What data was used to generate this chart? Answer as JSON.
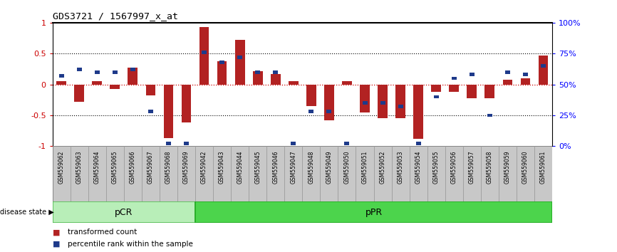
{
  "title": "GDS3721 / 1567997_x_at",
  "samples": [
    "GSM559062",
    "GSM559063",
    "GSM559064",
    "GSM559065",
    "GSM559066",
    "GSM559067",
    "GSM559068",
    "GSM559069",
    "GSM559042",
    "GSM559043",
    "GSM559044",
    "GSM559045",
    "GSM559046",
    "GSM559047",
    "GSM559048",
    "GSM559049",
    "GSM559050",
    "GSM559051",
    "GSM559052",
    "GSM559053",
    "GSM559054",
    "GSM559055",
    "GSM559056",
    "GSM559057",
    "GSM559058",
    "GSM559059",
    "GSM559060",
    "GSM559061"
  ],
  "transformed_count": [
    0.05,
    -0.28,
    0.05,
    -0.07,
    0.27,
    -0.18,
    -0.87,
    -0.62,
    0.93,
    0.37,
    0.72,
    0.22,
    0.17,
    0.05,
    -0.35,
    -0.58,
    0.05,
    -0.45,
    -0.55,
    -0.55,
    -0.88,
    -0.12,
    -0.12,
    -0.22,
    -0.22,
    0.08,
    0.1,
    0.47
  ],
  "percentile_rank": [
    0.57,
    0.62,
    0.6,
    0.6,
    0.62,
    0.28,
    0.02,
    0.02,
    0.76,
    0.68,
    0.72,
    0.6,
    0.6,
    0.02,
    0.28,
    0.28,
    0.02,
    0.35,
    0.35,
    0.32,
    0.02,
    0.4,
    0.55,
    0.58,
    0.25,
    0.6,
    0.58,
    0.65
  ],
  "pcr_count": 8,
  "ppr_count": 20,
  "bar_color": "#B22222",
  "square_color": "#1E3A8A",
  "pcr_color": "#B8EEB8",
  "ppr_color": "#4CD44C",
  "pcr_border": "#55BB55",
  "ppr_border": "#22AA22",
  "bg_color": "#FFFFFF",
  "label_bg_color": "#C8C8C8",
  "label_border_color": "#999999",
  "yticks_left": [
    -1,
    -0.5,
    0,
    0.5,
    1
  ],
  "yticks_right": [
    0,
    25,
    50,
    75,
    100
  ],
  "legend_tc": "transformed count",
  "legend_pr": "percentile rank within the sample",
  "disease_state_label": "disease state",
  "pcr_label": "pCR",
  "ppr_label": "pPR"
}
